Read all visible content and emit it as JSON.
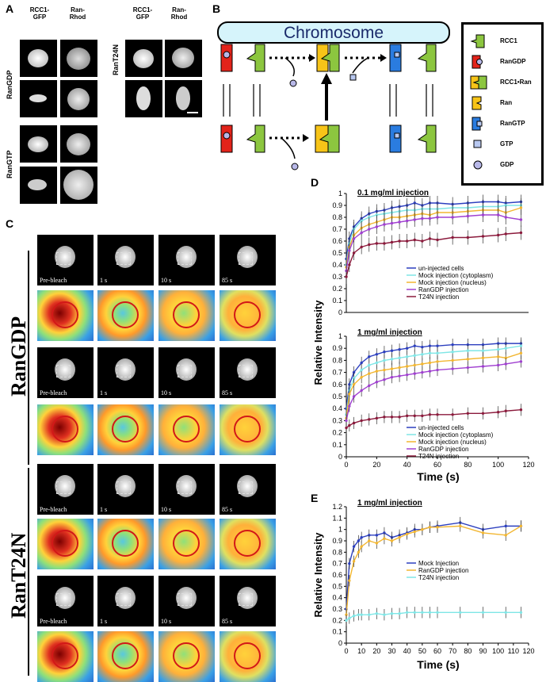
{
  "panel_labels": {
    "a": "A",
    "b": "B",
    "c": "C",
    "d": "D",
    "e": "E"
  },
  "panel_a": {
    "col_headers": [
      "RCC1-\nGFP",
      "Ran-\nRhod",
      "RCC1-\nGFP",
      "Ran-\nRhod"
    ],
    "row_labels": [
      "RanGDP",
      "RanGTP",
      "RanT24N"
    ]
  },
  "panel_b": {
    "chromosome_label": "Chromosome",
    "legend": [
      {
        "label": "RCC1",
        "color": "#8cc63f"
      },
      {
        "label": "RanGDP",
        "color": "#e2231a"
      },
      {
        "label": "RCC1•Ran",
        "color": "#f7c418"
      },
      {
        "label": "Ran",
        "color": "#f7c418"
      },
      {
        "label": "RanGTP",
        "color": "#2a7ce0"
      },
      {
        "label": "GTP",
        "color": "#b8c8f0"
      },
      {
        "label": "GDP",
        "color": "#b8b8e8"
      }
    ]
  },
  "panel_c": {
    "side_labels": [
      "RanGDP",
      "RanT24N"
    ],
    "timepoints": [
      "Pre-bleach",
      "1 s",
      "10 s",
      "85 s"
    ]
  },
  "panel_d": {
    "ylabel": "Relative Intensity",
    "xlabel": "Time (s)"
  },
  "panel_e": {
    "ylabel": "Relative Intensity",
    "xlabel": "Time (s)"
  },
  "chart_data": [
    {
      "type": "line",
      "panel": "D-top",
      "title": "0.1 mg/ml injection",
      "xlabel": "",
      "ylabel": "Relative Intensity",
      "xlim": [
        0,
        120
      ],
      "ylim": [
        0,
        1
      ],
      "xticks": [],
      "yticks": [
        0,
        0.1,
        0.2,
        0.3,
        0.4,
        0.5,
        0.6,
        0.7,
        0.8,
        0.9,
        1
      ],
      "x": [
        0,
        2,
        5,
        10,
        15,
        20,
        25,
        30,
        35,
        40,
        45,
        50,
        55,
        60,
        70,
        80,
        90,
        100,
        105,
        115
      ],
      "series": [
        {
          "name": "un-injected cells",
          "color": "#2c3fbf",
          "values": [
            0.45,
            0.62,
            0.72,
            0.79,
            0.83,
            0.85,
            0.86,
            0.88,
            0.89,
            0.9,
            0.92,
            0.9,
            0.92,
            0.92,
            0.91,
            0.92,
            0.93,
            0.93,
            0.92,
            0.93
          ]
        },
        {
          "name": "Mock injection (cytoplasm)",
          "color": "#7fe6e6",
          "values": [
            0.4,
            0.58,
            0.7,
            0.77,
            0.8,
            0.82,
            0.83,
            0.84,
            0.85,
            0.86,
            0.86,
            0.87,
            0.87,
            0.87,
            0.88,
            0.88,
            0.89,
            0.89,
            0.9,
            0.9
          ]
        },
        {
          "name": "Mock injection (nucleus)",
          "color": "#f2b631",
          "values": [
            0.38,
            0.55,
            0.65,
            0.71,
            0.74,
            0.76,
            0.78,
            0.8,
            0.8,
            0.81,
            0.82,
            0.83,
            0.82,
            0.84,
            0.84,
            0.85,
            0.86,
            0.86,
            0.84,
            0.88
          ]
        },
        {
          "name": "RanGDP injection",
          "color": "#a040d0",
          "values": [
            0.35,
            0.52,
            0.62,
            0.67,
            0.7,
            0.72,
            0.74,
            0.75,
            0.76,
            0.77,
            0.78,
            0.79,
            0.79,
            0.8,
            0.8,
            0.81,
            0.82,
            0.82,
            0.8,
            0.78
          ]
        },
        {
          "name": "T24N injection",
          "color": "#8b1a3c",
          "values": [
            0.3,
            0.4,
            0.5,
            0.55,
            0.57,
            0.58,
            0.58,
            0.59,
            0.6,
            0.6,
            0.61,
            0.6,
            0.62,
            0.61,
            0.63,
            0.63,
            0.64,
            0.65,
            0.66,
            0.67
          ]
        }
      ]
    },
    {
      "type": "line",
      "panel": "D-bottom",
      "title": "1 mg/ml injection",
      "xlabel": "Time (s)",
      "ylabel": "Relative Intensity",
      "xlim": [
        0,
        120
      ],
      "ylim": [
        0,
        1
      ],
      "xticks": [
        0,
        20,
        40,
        60,
        80,
        100,
        120
      ],
      "yticks": [
        0,
        0.1,
        0.2,
        0.3,
        0.4,
        0.5,
        0.6,
        0.7,
        0.8,
        0.9,
        1
      ],
      "x": [
        0,
        2,
        5,
        10,
        15,
        20,
        25,
        30,
        35,
        40,
        45,
        50,
        55,
        60,
        70,
        80,
        90,
        100,
        105,
        115
      ],
      "series": [
        {
          "name": "un-injected cells",
          "color": "#2c3fbf",
          "values": [
            0.4,
            0.6,
            0.7,
            0.78,
            0.83,
            0.85,
            0.87,
            0.88,
            0.89,
            0.9,
            0.92,
            0.91,
            0.92,
            0.92,
            0.93,
            0.93,
            0.93,
            0.94,
            0.94,
            0.94
          ]
        },
        {
          "name": "Mock injection (cytoplasm)",
          "color": "#7fe6e6",
          "values": [
            0.35,
            0.55,
            0.65,
            0.72,
            0.76,
            0.78,
            0.8,
            0.81,
            0.82,
            0.83,
            0.84,
            0.85,
            0.86,
            0.86,
            0.87,
            0.88,
            0.88,
            0.89,
            0.9,
            0.92
          ]
        },
        {
          "name": "Mock injection (nucleus)",
          "color": "#f2b631",
          "values": [
            0.32,
            0.52,
            0.6,
            0.66,
            0.69,
            0.71,
            0.72,
            0.73,
            0.74,
            0.75,
            0.76,
            0.77,
            0.78,
            0.79,
            0.8,
            0.81,
            0.82,
            0.83,
            0.82,
            0.86
          ]
        },
        {
          "name": "RanGDP injection",
          "color": "#a040d0",
          "values": [
            0.3,
            0.42,
            0.5,
            0.55,
            0.59,
            0.62,
            0.64,
            0.66,
            0.67,
            0.68,
            0.69,
            0.7,
            0.71,
            0.72,
            0.73,
            0.74,
            0.75,
            0.76,
            0.77,
            0.79
          ]
        },
        {
          "name": "T24N injection",
          "color": "#8b1a3c",
          "values": [
            0.24,
            0.26,
            0.28,
            0.3,
            0.31,
            0.32,
            0.33,
            0.33,
            0.33,
            0.34,
            0.34,
            0.34,
            0.35,
            0.35,
            0.35,
            0.36,
            0.36,
            0.37,
            0.38,
            0.39
          ]
        }
      ]
    },
    {
      "type": "line",
      "panel": "E",
      "title": "1 mg/ml injection",
      "xlabel": "Time (s)",
      "ylabel": "Relative Intensity",
      "xlim": [
        0,
        120
      ],
      "ylim": [
        0,
        1.2
      ],
      "xticks": [
        0,
        10,
        20,
        30,
        40,
        50,
        60,
        70,
        80,
        90,
        100,
        110,
        120
      ],
      "yticks": [
        0,
        0.1,
        0.2,
        0.3,
        0.4,
        0.5,
        0.6,
        0.7,
        0.8,
        0.9,
        1,
        1.1,
        1.2
      ],
      "x": [
        0,
        2,
        5,
        8,
        10,
        15,
        20,
        25,
        30,
        35,
        40,
        45,
        50,
        55,
        60,
        75,
        90,
        105,
        115
      ],
      "series": [
        {
          "name": "Mock Injection",
          "color": "#2c3fbf",
          "values": [
            0.3,
            0.7,
            0.85,
            0.9,
            0.93,
            0.95,
            0.95,
            0.97,
            0.93,
            0.95,
            0.97,
            1.0,
            1.0,
            1.02,
            1.03,
            1.06,
            1.0,
            1.03,
            1.03
          ]
        },
        {
          "name": "RanGDP injection",
          "color": "#f2b631",
          "values": [
            0.25,
            0.55,
            0.72,
            0.8,
            0.85,
            0.9,
            0.88,
            0.92,
            0.9,
            0.93,
            0.96,
            0.98,
            1.0,
            1.02,
            1.02,
            1.03,
            0.97,
            0.95,
            1.03
          ]
        },
        {
          "name": "T24N injection",
          "color": "#7fe6e6",
          "values": [
            0.2,
            0.22,
            0.24,
            0.25,
            0.25,
            0.25,
            0.26,
            0.25,
            0.26,
            0.26,
            0.27,
            0.27,
            0.27,
            0.27,
            0.27,
            0.27,
            0.27,
            0.27,
            0.27
          ]
        }
      ]
    }
  ]
}
